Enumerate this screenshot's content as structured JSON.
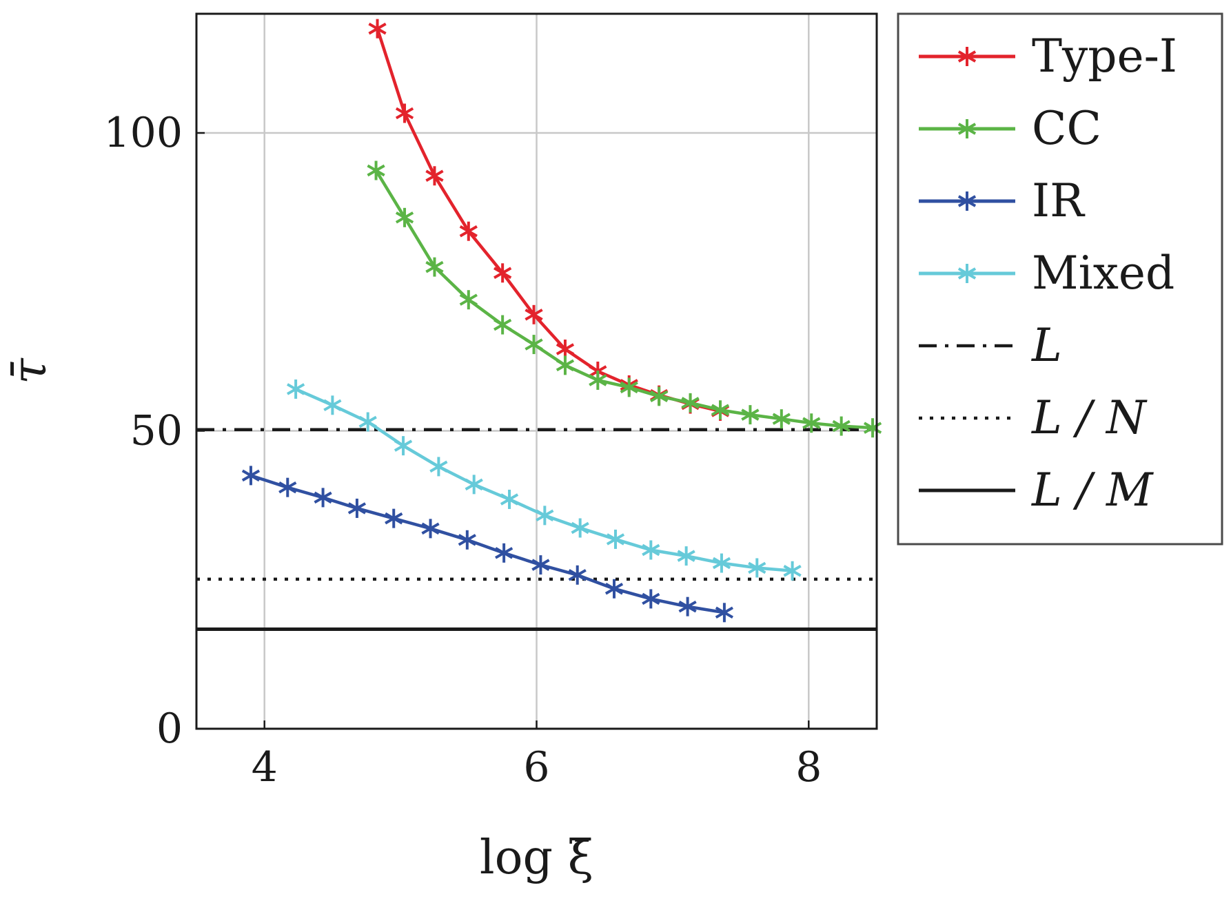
{
  "chart_data": {
    "type": "line",
    "xlabel": "log ξ̄",
    "ylabel": "τ̄",
    "xlim": [
      3.5,
      8.5
    ],
    "ylim": [
      0,
      120
    ],
    "x_ticks": [
      4,
      6,
      8
    ],
    "y_ticks": [
      0,
      50,
      100
    ],
    "x_tick_labels": [
      "4",
      "6",
      "8"
    ],
    "y_tick_labels": [
      "0",
      "50",
      "100"
    ],
    "grid": true,
    "legend_position": "outside-right",
    "series": [
      {
        "name": "Type-I",
        "color": "#e3232c",
        "marker": "asterisk",
        "x": [
          4.83,
          5.03,
          5.25,
          5.5,
          5.75,
          5.98,
          6.21,
          6.45,
          6.68,
          6.9,
          7.13,
          7.35
        ],
        "y": [
          117.5,
          103.3,
          92.8,
          83.5,
          76.5,
          69.5,
          63.7,
          60.0,
          57.7,
          56.0,
          54.5,
          53.3
        ]
      },
      {
        "name": "CC",
        "color": "#5bb446",
        "marker": "asterisk",
        "x": [
          4.82,
          5.03,
          5.25,
          5.5,
          5.75,
          5.98,
          6.21,
          6.45,
          6.68,
          6.9,
          7.13,
          7.35,
          7.57,
          7.8,
          8.02,
          8.24,
          8.47
        ],
        "y": [
          93.7,
          85.8,
          77.5,
          72.0,
          67.8,
          64.5,
          61.0,
          58.5,
          57.3,
          55.8,
          54.7,
          53.5,
          52.7,
          52.0,
          51.3,
          50.8,
          50.5
        ]
      },
      {
        "name": "IR",
        "color": "#3050a1",
        "marker": "asterisk",
        "x": [
          3.9,
          4.17,
          4.43,
          4.68,
          4.95,
          5.22,
          5.49,
          5.76,
          6.03,
          6.3,
          6.57,
          6.84,
          7.11,
          7.38
        ],
        "y": [
          42.5,
          40.5,
          38.8,
          37.0,
          35.3,
          33.6,
          31.7,
          29.5,
          27.5,
          25.8,
          23.5,
          21.8,
          20.5,
          19.5
        ]
      },
      {
        "name": "Mixed",
        "color": "#66cad9",
        "marker": "asterisk",
        "x": [
          4.23,
          4.5,
          4.76,
          5.02,
          5.28,
          5.54,
          5.8,
          6.06,
          6.32,
          6.58,
          6.84,
          7.1,
          7.36,
          7.62,
          7.88
        ],
        "y": [
          57.0,
          54.3,
          51.5,
          47.5,
          44.0,
          41.0,
          38.5,
          35.8,
          33.7,
          31.8,
          30.0,
          29.0,
          27.8,
          27.0,
          26.5
        ]
      }
    ],
    "reference_lines": [
      {
        "name": "L",
        "style": "dashdot",
        "y": 50.2,
        "color": "#1a1a1a"
      },
      {
        "name": "L / N",
        "style": "dotted",
        "y": 25.1,
        "color": "#1a1a1a"
      },
      {
        "name": "L / M",
        "style": "solid",
        "y": 16.7,
        "color": "#1a1a1a"
      }
    ]
  }
}
